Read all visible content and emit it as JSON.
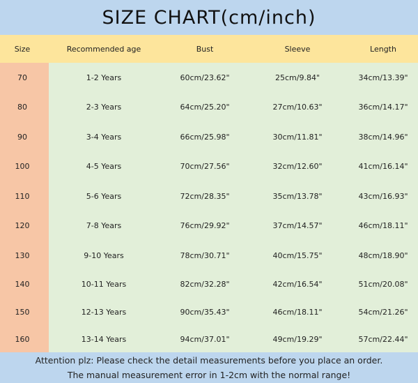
{
  "title": "SIZE CHART(cm/inch)",
  "headers": [
    "Size",
    "Recommended age",
    "Bust",
    "Sleeve",
    "Length"
  ],
  "rows": [
    [
      "70",
      "1-2 Years",
      "60cm/23.62\"",
      "25cm/9.84\"",
      "34cm/13.39\""
    ],
    [
      "80",
      "2-3 Years",
      "64cm/25.20\"",
      "27cm/10.63\"",
      "36cm/14.17\""
    ],
    [
      "90",
      "3-4 Years",
      "66cm/25.98\"",
      "30cm/11.81\"",
      "38cm/14.96\""
    ],
    [
      "100",
      "4-5 Years",
      "70cm/27.56\"",
      "32cm/12.60\"",
      "41cm/16.14\""
    ],
    [
      "110",
      "5-6 Years",
      "72cm/28.35\"",
      "35cm/13.78\"",
      "43cm/16.93\""
    ],
    [
      "120",
      "7-8 Years",
      "76cm/29.92\"",
      "37cm/14.57\"",
      "46cm/18.11\""
    ],
    [
      "130",
      "9-10 Years",
      "78cm/30.71\"",
      "40cm/15.75\"",
      "48cm/18.90\""
    ],
    [
      "140",
      "10-11 Years",
      "82cm/32.28\"",
      "42cm/16.54\"",
      "51cm/20.08\""
    ],
    [
      "150",
      "12-13 Years",
      "90cm/35.43\"",
      "46cm/18.11\"",
      "54cm/21.26\""
    ],
    [
      "160",
      "13-14 Years",
      "94cm/37.01\"",
      "49cm/19.29\"",
      "57cm/22.44\""
    ]
  ],
  "footer": [
    "Attention plz:  Please check the detail measurements before you place an order.",
    "The manual measurement error in 1-2cm with the normal range!"
  ],
  "colors": {
    "title_bg": "#bdd6ee",
    "header_bg": "#fde59c",
    "body_bg": "#e2efd9",
    "size_col_bg": "#f7c6a6"
  }
}
